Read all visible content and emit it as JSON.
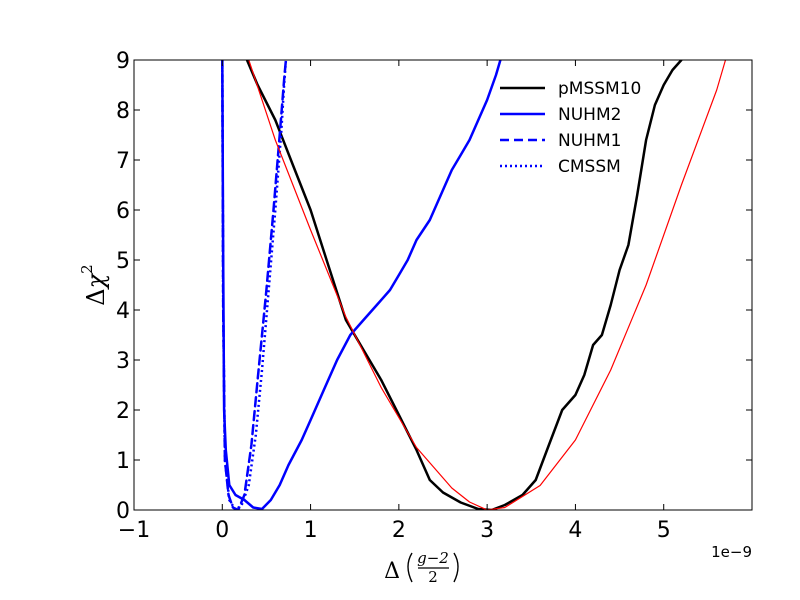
{
  "chart_data": {
    "type": "line",
    "xlim": [
      -1,
      6
    ],
    "ylim": [
      0,
      9
    ],
    "x_ticks": [
      -1,
      0,
      1,
      2,
      3,
      4,
      5
    ],
    "x_tick_labels": [
      "−1",
      "0",
      "1",
      "2",
      "3",
      "4",
      "5"
    ],
    "y_ticks": [
      0,
      1,
      2,
      3,
      4,
      5,
      6,
      7,
      8,
      9
    ],
    "y_tick_labels": [
      "0",
      "1",
      "2",
      "3",
      "4",
      "5",
      "6",
      "7",
      "8",
      "9"
    ],
    "x_offset_label": "1e−9",
    "xlabel": {
      "delta": "Δ",
      "num": "g−2",
      "den": "2"
    },
    "ylabel": {
      "delta": "Δ",
      "chi": "χ",
      "sup": "2"
    },
    "legend_position": "top-right",
    "series": [
      {
        "name": "pMSSM10",
        "color": "#000000",
        "style": "solid",
        "in_legend": true,
        "points": [
          [
            0.28,
            9.0
          ],
          [
            0.4,
            8.5
          ],
          [
            0.6,
            7.8
          ],
          [
            0.8,
            6.9
          ],
          [
            1.0,
            6.0
          ],
          [
            1.2,
            4.9
          ],
          [
            1.4,
            3.8
          ],
          [
            1.6,
            3.2
          ],
          [
            1.8,
            2.6
          ],
          [
            2.0,
            1.9
          ],
          [
            2.2,
            1.2
          ],
          [
            2.35,
            0.6
          ],
          [
            2.5,
            0.35
          ],
          [
            2.7,
            0.15
          ],
          [
            2.9,
            0.02
          ],
          [
            3.05,
            0.0
          ],
          [
            3.2,
            0.1
          ],
          [
            3.4,
            0.3
          ],
          [
            3.55,
            0.6
          ],
          [
            3.7,
            1.3
          ],
          [
            3.85,
            2.0
          ],
          [
            4.0,
            2.3
          ],
          [
            4.1,
            2.7
          ],
          [
            4.2,
            3.3
          ],
          [
            4.3,
            3.5
          ],
          [
            4.4,
            4.1
          ],
          [
            4.5,
            4.8
          ],
          [
            4.6,
            5.3
          ],
          [
            4.7,
            6.3
          ],
          [
            4.8,
            7.4
          ],
          [
            4.9,
            8.1
          ],
          [
            5.0,
            8.5
          ],
          [
            5.1,
            8.8
          ],
          [
            5.2,
            9.0
          ]
        ]
      },
      {
        "name": "NUHM2",
        "color": "#0000ff",
        "style": "solid",
        "in_legend": true,
        "points": [
          [
            0.0,
            9.0
          ],
          [
            0.01,
            5.0
          ],
          [
            0.02,
            2.0
          ],
          [
            0.04,
            1.2
          ],
          [
            0.08,
            0.5
          ],
          [
            0.15,
            0.3
          ],
          [
            0.25,
            0.2
          ],
          [
            0.35,
            0.05
          ],
          [
            0.45,
            0.02
          ],
          [
            0.55,
            0.2
          ],
          [
            0.65,
            0.5
          ],
          [
            0.75,
            0.9
          ],
          [
            0.9,
            1.4
          ],
          [
            1.0,
            1.8
          ],
          [
            1.15,
            2.4
          ],
          [
            1.3,
            3.0
          ],
          [
            1.45,
            3.5
          ],
          [
            1.6,
            3.8
          ],
          [
            1.75,
            4.1
          ],
          [
            1.9,
            4.4
          ],
          [
            2.0,
            4.7
          ],
          [
            2.1,
            5.0
          ],
          [
            2.2,
            5.4
          ],
          [
            2.35,
            5.8
          ],
          [
            2.5,
            6.4
          ],
          [
            2.6,
            6.8
          ],
          [
            2.7,
            7.1
          ],
          [
            2.8,
            7.4
          ],
          [
            2.9,
            7.8
          ],
          [
            3.0,
            8.2
          ],
          [
            3.1,
            8.7
          ],
          [
            3.15,
            9.0
          ]
        ]
      },
      {
        "name": "NUHM1",
        "color": "#0000ff",
        "style": "dashed",
        "in_legend": true,
        "points": [
          [
            0.0,
            9.0
          ],
          [
            0.01,
            4.0
          ],
          [
            0.03,
            1.0
          ],
          [
            0.07,
            0.3
          ],
          [
            0.12,
            0.05
          ],
          [
            0.18,
            0.0
          ],
          [
            0.25,
            0.3
          ],
          [
            0.33,
            1.3
          ],
          [
            0.4,
            2.6
          ],
          [
            0.5,
            4.4
          ],
          [
            0.58,
            6.0
          ],
          [
            0.65,
            7.5
          ],
          [
            0.7,
            8.6
          ],
          [
            0.72,
            9.0
          ]
        ]
      },
      {
        "name": "CMSSM",
        "color": "#0000ff",
        "style": "dotted",
        "in_legend": true,
        "points": [
          [
            0.0,
            9.0
          ],
          [
            0.01,
            4.0
          ],
          [
            0.03,
            1.0
          ],
          [
            0.08,
            0.2
          ],
          [
            0.15,
            0.0
          ],
          [
            0.22,
            0.1
          ],
          [
            0.3,
            0.5
          ],
          [
            0.38,
            1.5
          ],
          [
            0.45,
            2.8
          ],
          [
            0.53,
            4.5
          ],
          [
            0.6,
            6.0
          ],
          [
            0.67,
            7.6
          ],
          [
            0.7,
            8.5
          ],
          [
            0.72,
            9.0
          ]
        ]
      },
      {
        "name": "reference parabola",
        "color": "#ff0000",
        "style": "solid",
        "in_legend": false,
        "points": [
          [
            0.3,
            9.0
          ],
          [
            0.6,
            7.4
          ],
          [
            1.0,
            5.6
          ],
          [
            1.4,
            3.86
          ],
          [
            1.8,
            2.45
          ],
          [
            2.2,
            1.25
          ],
          [
            2.6,
            0.44
          ],
          [
            2.8,
            0.16
          ],
          [
            3.0,
            0.0
          ],
          [
            3.2,
            0.05
          ],
          [
            3.6,
            0.49
          ],
          [
            4.0,
            1.4
          ],
          [
            4.4,
            2.8
          ],
          [
            4.8,
            4.5
          ],
          [
            5.2,
            6.5
          ],
          [
            5.6,
            8.4
          ],
          [
            5.7,
            9.0
          ]
        ]
      }
    ]
  }
}
